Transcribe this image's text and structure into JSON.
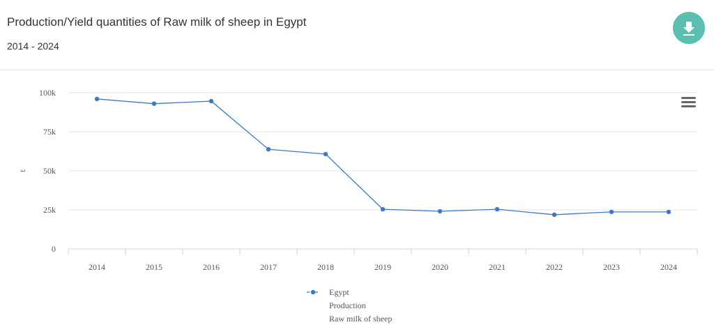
{
  "chart_data": {
    "type": "line",
    "title": "Production/Yield quantities of Raw milk of sheep in Egypt",
    "subtitle": "2014 - 2024",
    "y_label": "t",
    "categories": [
      "2014",
      "2015",
      "2016",
      "2017",
      "2018",
      "2019",
      "2020",
      "2021",
      "2022",
      "2023",
      "2024"
    ],
    "series": [
      {
        "name": "Egypt",
        "element": "Production",
        "item": "Raw milk of sheep",
        "color": "#3d78c9",
        "values": [
          96000,
          93000,
          94600,
          63800,
          60700,
          25400,
          24100,
          25400,
          21900,
          23700,
          23700
        ]
      }
    ],
    "ylim": [
      0,
      100000
    ],
    "yticks": [
      0,
      {
        "value": 25000,
        "label": "25k"
      },
      {
        "value": 50000,
        "label": "50k"
      },
      {
        "value": 75000,
        "label": "75k"
      },
      {
        "value": 100000,
        "label": "100k"
      }
    ],
    "grid": true
  }
}
